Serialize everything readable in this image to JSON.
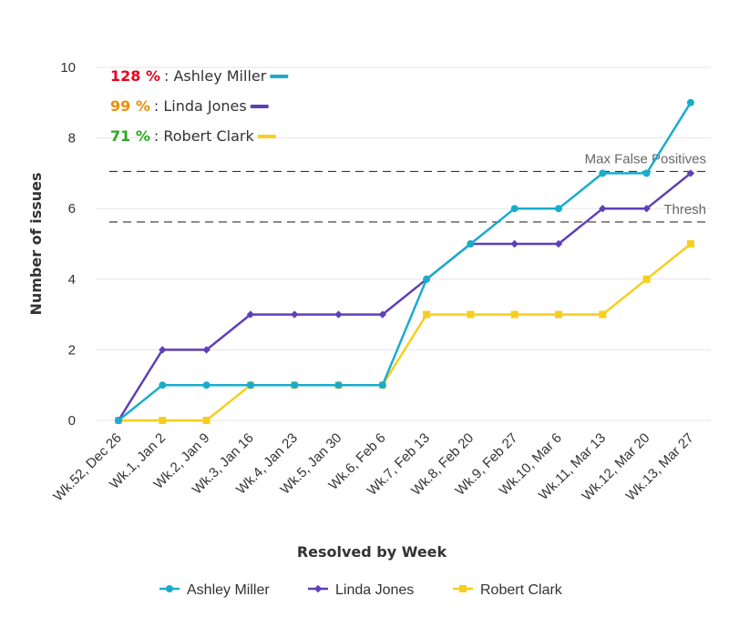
{
  "chart_data": {
    "type": "line",
    "categories": [
      "Wk.52, Dec 26",
      "Wk.1, Jan 2",
      "Wk.2, Jan 9",
      "Wk.3, Jan 16",
      "Wk.4, Jan 23",
      "Wk.5, Jan 30",
      "Wk.6, Feb 6",
      "Wk.7, Feb 13",
      "Wk.8, Feb 20",
      "Wk.9, Feb 27",
      "Wk.10, Mar 6",
      "Wk.11, Mar 13",
      "Wk.12, Mar 20",
      "Wk.13, Mar 27"
    ],
    "series": [
      {
        "name": "Ashley Miller",
        "color": "#1aaccc",
        "marker": "circle",
        "values": [
          0,
          1,
          1,
          1,
          1,
          1,
          1,
          4,
          5,
          6,
          6,
          7,
          7,
          9
        ]
      },
      {
        "name": "Linda Jones",
        "color": "#5e3fb8",
        "marker": "diamond",
        "values": [
          0,
          2,
          2,
          3,
          3,
          3,
          3,
          4,
          5,
          5,
          5,
          6,
          6,
          7
        ]
      },
      {
        "name": "Robert Clark",
        "color": "#f7ce1e",
        "marker": "square",
        "values": [
          0,
          0,
          0,
          1,
          1,
          1,
          1,
          3,
          3,
          3,
          3,
          3,
          4,
          5
        ]
      }
    ],
    "xlabel": "Resolved by Week",
    "ylabel": "Number of issues",
    "ylim": [
      0,
      10
    ],
    "yticks": [
      0,
      2,
      4,
      6,
      8,
      10
    ],
    "grid": true,
    "legend": "bottom",
    "reference_lines": [
      {
        "label": "Max False Positives",
        "value": 7.05
      },
      {
        "label": "Thresh",
        "value": 5.62
      }
    ],
    "annotations": [
      {
        "percent": "128 %",
        "name": ": Ashley Miller",
        "color": "#e8001c",
        "swatch": "#1aaccc"
      },
      {
        "percent": "99 %",
        "name": ": Linda Jones",
        "color": "#f08c00",
        "swatch": "#5e3fb8"
      },
      {
        "percent": "71 %",
        "name": ": Robert Clark",
        "color": "#2ba81e",
        "swatch": "#f7ce1e"
      }
    ]
  }
}
